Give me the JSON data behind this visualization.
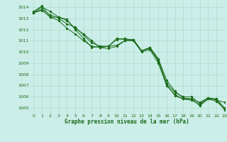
{
  "title": "Graphe pression niveau de la mer (hPa)",
  "bg_color": "#cceee8",
  "grid_color": "#aaddcc",
  "line_color": "#1a6b1a",
  "xlim": [
    -0.5,
    23
  ],
  "ylim": [
    1004.5,
    1014.5
  ],
  "xticks": [
    0,
    1,
    2,
    3,
    4,
    5,
    6,
    7,
    8,
    9,
    10,
    11,
    12,
    13,
    14,
    15,
    16,
    17,
    18,
    19,
    20,
    21,
    22,
    23
  ],
  "yticks": [
    1005,
    1006,
    1007,
    1008,
    1009,
    1010,
    1011,
    1012,
    1013,
    1014
  ],
  "series": [
    [
      1013.5,
      1014.0,
      1013.6,
      1013.1,
      1012.8,
      1012.1,
      1011.6,
      1011.0,
      1010.4,
      1010.3,
      1010.5,
      1011.0,
      1011.0,
      1010.0,
      1010.2,
      1009.0,
      1007.0,
      1006.2,
      1005.8,
      1005.8,
      1005.2,
      1005.8,
      1005.8,
      1004.8
    ],
    [
      1013.5,
      1013.7,
      1013.1,
      1012.8,
      1012.1,
      1011.6,
      1011.0,
      1010.5,
      1010.4,
      1010.5,
      1010.6,
      1011.0,
      1011.1,
      1010.1,
      1010.3,
      1009.2,
      1007.2,
      1006.4,
      1006.0,
      1006.0,
      1005.4,
      1005.9,
      1005.8,
      1005.0
    ],
    [
      1013.5,
      1013.8,
      1013.3,
      1013.0,
      1012.5,
      1012.2,
      1011.5,
      1010.8,
      1010.5,
      1010.5,
      1011.2,
      1011.1,
      1011.1,
      1010.1,
      1010.4,
      1009.4,
      1007.5,
      1006.5,
      1005.9,
      1005.8,
      1005.5,
      1005.9,
      1005.7,
      1005.5
    ],
    [
      1013.6,
      1014.1,
      1013.1,
      1013.1,
      1012.9,
      1012.0,
      1011.2,
      1010.4,
      1010.5,
      1010.5,
      1011.1,
      1011.2,
      1011.0,
      1010.1,
      1010.4,
      1009.3,
      1007.1,
      1006.1,
      1005.8,
      1005.7,
      1005.3,
      1005.8,
      1005.6,
      1004.9
    ]
  ]
}
